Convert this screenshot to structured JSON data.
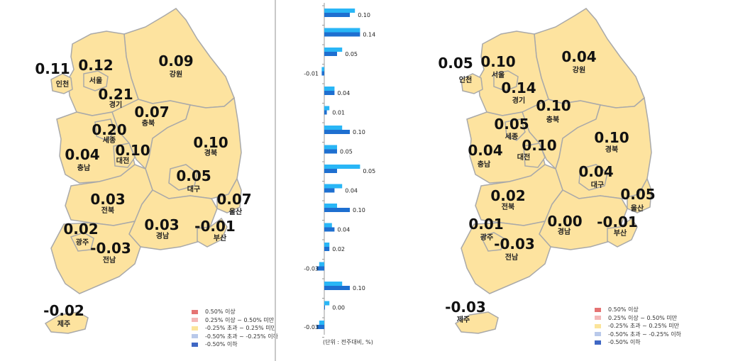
{
  "legend": [
    {
      "label": "0.50% 이상",
      "color": "#e57373"
    },
    {
      "label": "0.25% 이상 ~ 0.50% 미만",
      "color": "#f4b8b8"
    },
    {
      "label": "-0.25% 초과 ~ 0.25% 미만",
      "color": "#fbe49a"
    },
    {
      "label": "-0.50% 초과 ~ -0.25% 이하",
      "color": "#b9c9ea"
    },
    {
      "label": "-0.50% 이하",
      "color": "#3f67c4"
    }
  ],
  "map_fill": "#fde39f",
  "map_stroke": "#a9a9a9",
  "left_map": {
    "regions": [
      {
        "name": "인천",
        "value": "0.11"
      },
      {
        "name": "서울",
        "value": "0.12"
      },
      {
        "name": "경기",
        "value": "0.21"
      },
      {
        "name": "강원",
        "value": "0.09"
      },
      {
        "name": "충북",
        "value": "0.07"
      },
      {
        "name": "세종",
        "value": "0.20"
      },
      {
        "name": "대전",
        "value": "0.10"
      },
      {
        "name": "충남",
        "value": "0.04"
      },
      {
        "name": "경북",
        "value": "0.10"
      },
      {
        "name": "대구",
        "value": "0.05"
      },
      {
        "name": "울산",
        "value": "0.07"
      },
      {
        "name": "전북",
        "value": "0.03"
      },
      {
        "name": "경남",
        "value": "0.03"
      },
      {
        "name": "부산",
        "value": "-0.01"
      },
      {
        "name": "광주",
        "value": "0.02"
      },
      {
        "name": "전남",
        "value": "-0.03"
      },
      {
        "name": "제주",
        "value": "-0.02"
      }
    ]
  },
  "right_map": {
    "regions": [
      {
        "name": "인천",
        "value": "0.05"
      },
      {
        "name": "서울",
        "value": "0.10"
      },
      {
        "name": "경기",
        "value": "0.14"
      },
      {
        "name": "강원",
        "value": "0.04"
      },
      {
        "name": "충북",
        "value": "0.10"
      },
      {
        "name": "세종",
        "value": "0.05"
      },
      {
        "name": "대전",
        "value": "0.10"
      },
      {
        "name": "충남",
        "value": "0.04"
      },
      {
        "name": "경북",
        "value": "0.10"
      },
      {
        "name": "대구",
        "value": "0.04"
      },
      {
        "name": "울산",
        "value": "0.05"
      },
      {
        "name": "전북",
        "value": "0.02"
      },
      {
        "name": "경남",
        "value": "0.00"
      },
      {
        "name": "부산",
        "value": "-0.01"
      },
      {
        "name": "광주",
        "value": "0.01"
      },
      {
        "name": "전남",
        "value": "-0.03"
      },
      {
        "name": "제주",
        "value": "-0.03"
      }
    ]
  },
  "chart_data": {
    "type": "bar",
    "orientation": "horizontal",
    "unit_label": "(단위 : 전주대비, %)",
    "series_colors": [
      "#29b6f6",
      "#1e6fd0"
    ],
    "value_labels": [
      "0.10",
      "0.14",
      "0.05",
      "-0.01",
      "0.04",
      "0.01",
      "0.10",
      "0.05",
      "0.05",
      "0.04",
      "0.10",
      "0.04",
      "0.02",
      "-0.03",
      "0.10",
      "0.00",
      "-0.03"
    ],
    "series": [
      {
        "values": [
          0.12,
          0.14,
          0.07,
          -0.01,
          0.04,
          0.02,
          0.07,
          0.05,
          0.14,
          0.07,
          0.05,
          0.03,
          0.02,
          -0.02,
          0.07,
          0.02,
          -0.02
        ]
      },
      {
        "values": [
          0.1,
          0.14,
          0.05,
          -0.01,
          0.04,
          0.01,
          0.1,
          0.05,
          0.05,
          0.04,
          0.1,
          0.04,
          0.02,
          -0.03,
          0.1,
          0.0,
          -0.03
        ]
      }
    ]
  }
}
